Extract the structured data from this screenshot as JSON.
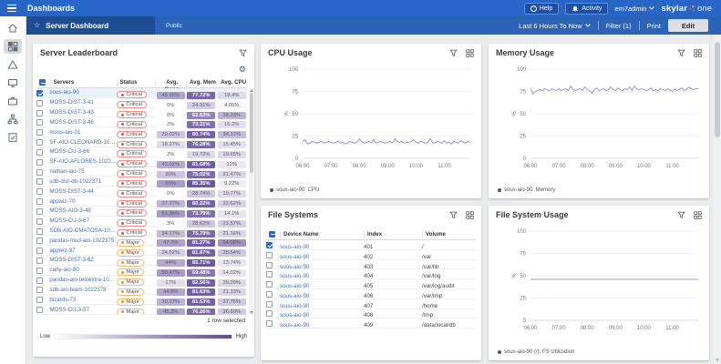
{
  "colors": {
    "topbar": "#2765c6",
    "subbar": "#2b63b7",
    "subbar_dark": "#1f4d94",
    "heat_purple": "#6851a3",
    "line_purple": "#9a85c9",
    "legend_purple": "#5b4791",
    "critical": "#d9534f",
    "major": "#f0940a",
    "link": "#3f6fc4",
    "checkbox_blue": "#2d6bc4"
  },
  "topbar": {
    "title": "Dashboards",
    "help_label": "Help",
    "activity_label": "Activity",
    "user": "em7admin",
    "brand_left": "skylar",
    "brand_right": "one"
  },
  "subheader": {
    "title": "Server Dashboard",
    "visibility": "Public",
    "time_range": "Last 6 Hours To Now",
    "filter_label": "Filter (1)",
    "print_label": "Print",
    "edit_label": "Edit"
  },
  "sidebar": {
    "items": [
      "home",
      "dashboards",
      "events",
      "devices",
      "business-services",
      "maps",
      "tickets"
    ],
    "active": "dashboards"
  },
  "leaderboard": {
    "title": "Server Leaderboard",
    "columns": [
      "Servers",
      "Status",
      "Avg. Swap",
      "Avg. Mem",
      "Avg. CPU"
    ],
    "selected_note": "1 row selected",
    "legend_low": "Low",
    "legend_high": "High",
    "rows": [
      {
        "name": "sous-aio-90",
        "status": "Critical",
        "swap": 45.95,
        "mem": 77.72,
        "cpu": 18.4,
        "selected": true
      },
      {
        "name": "MOSS-DIST-3-41",
        "status": "Critical",
        "swap": 0,
        "mem": 24.91,
        "cpu": 4.05
      },
      {
        "name": "MOSS-DIST-3-43",
        "status": "Critical",
        "swap": 0,
        "mem": 62.63,
        "cpu": 38.33
      },
      {
        "name": "MOSS-DIST-3-46",
        "status": "Critical",
        "swap": 2,
        "mem": 73.21,
        "cpu": 16.2
      },
      {
        "name": "moss-aio-01",
        "status": "Critical",
        "swap": 29.02,
        "mem": 80.74,
        "cpu": 34.12
      },
      {
        "name": "SF-AIO-CLEONARD-1022321",
        "status": "Critical",
        "swap": 18.27,
        "mem": 76.28,
        "cpu": 15.45
      },
      {
        "name": "MOSS-CU-3-66",
        "status": "Critical",
        "swap": 2,
        "mem": 19.72,
        "cpu": 19.65
      },
      {
        "name": "SF-AIO-AFLORES-1022328",
        "status": "Critical",
        "swap": 43.02,
        "mem": 81.68,
        "cpu": 12
      },
      {
        "name": "nathan-aio-75",
        "status": "Critical",
        "swap": 30,
        "mem": 75.02,
        "cpu": 21.47
      },
      {
        "name": "sdb-dist-db-1022371",
        "status": "Critical",
        "swap": 50,
        "mem": 85.35,
        "cpu": 9.22
      },
      {
        "name": "MOSS-DIST-3-44",
        "status": "Critical",
        "swap": 0,
        "mem": 28.74,
        "cpu": 19.77
      },
      {
        "name": "appwiz-70",
        "status": "Critical",
        "swap": 37.27,
        "mem": 80.22,
        "cpu": 22.62
      },
      {
        "name": "MOSS-AIO-3-48",
        "status": "Critical",
        "swap": 51.35,
        "mem": 73.79,
        "cpu": 14.1
      },
      {
        "name": "MOSS-CU-3-67",
        "status": "Critical",
        "swap": 3,
        "mem": 28.62,
        "cpu": 23.57
      },
      {
        "name": "SDB-AIO-CMATOSA-1022327",
        "status": "Critical",
        "swap": 34.17,
        "mem": 75.79,
        "cpu": 21.16
      },
      {
        "name": "pandas-mud-aio-1022375",
        "status": "Major",
        "swap": 47.7,
        "mem": 81.27,
        "cpu": 54.98
      },
      {
        "name": "appwiz-37",
        "status": "Major",
        "swap": 24.02,
        "mem": 81.87,
        "cpu": 28.54
      },
      {
        "name": "MOSS-DIST-3-62",
        "status": "Major",
        "swap": 44,
        "mem": 85.71,
        "cpu": 13.74
      },
      {
        "name": "carly-aio-80",
        "status": "Major",
        "swap": 50.47,
        "mem": 69.48,
        "cpu": 14.02
      },
      {
        "name": "pandas-aio-testextra-1022377",
        "status": "Major",
        "swap": 17,
        "mem": 82.56,
        "cpu": 20.29
      },
      {
        "name": "sdb-aio-team-1022378",
        "status": "Major",
        "swap": 44.8,
        "mem": 81.63,
        "cpu": 21.23
      },
      {
        "name": "bizards-73",
        "status": "Major",
        "swap": 39.27,
        "mem": 81.53,
        "cpu": 27.76
      },
      {
        "name": "MOSS-CU-3-57",
        "status": "Major",
        "swap": 45.3,
        "mem": 76.26,
        "cpu": 26.69
      }
    ]
  },
  "filesystems": {
    "title": "File Systems",
    "columns": [
      "Device Name",
      "Index",
      "Volume"
    ],
    "rows": [
      {
        "device": "sous-aio-90",
        "index": "401",
        "volume": "/",
        "checked": true
      },
      {
        "device": "sous-aio-90",
        "index": "402",
        "volume": "/var"
      },
      {
        "device": "sous-aio-90",
        "index": "403",
        "volume": "/var/lib"
      },
      {
        "device": "sous-aio-90",
        "index": "404",
        "volume": "/var/log"
      },
      {
        "device": "sous-aio-90",
        "index": "405",
        "volume": "/var/log/audit"
      },
      {
        "device": "sous-aio-90",
        "index": "406",
        "volume": "/var/tmp"
      },
      {
        "device": "sous-aio-90",
        "index": "407",
        "volume": "/home"
      },
      {
        "device": "sous-aio-90",
        "index": "408",
        "volume": "/tmp"
      },
      {
        "device": "sous-aio-90",
        "index": "409",
        "volume": "/data/local/db"
      }
    ]
  },
  "chart_data": [
    {
      "type": "line",
      "title": "CPU Usage",
      "ylabel": "%",
      "ylim": [
        0,
        100
      ],
      "yticks": [
        0,
        25,
        50,
        75,
        100
      ],
      "grid": true,
      "legend_position": "bottom-left",
      "x_ticks": [
        "06:00",
        "07:00",
        "08:00",
        "09:00",
        "10:00",
        "11:00"
      ],
      "x_range": [
        "06:00",
        "11:55"
      ],
      "series": [
        {
          "name": "sous-aio-90: CPU",
          "values": [
            19,
            21,
            16,
            17,
            19,
            18,
            17,
            18,
            19,
            17,
            18,
            19,
            18,
            17,
            18,
            19,
            17,
            18,
            16,
            17,
            19,
            18,
            17,
            18,
            22,
            19,
            17,
            18,
            19,
            17,
            21,
            17,
            18,
            19,
            18,
            17,
            18,
            19,
            17,
            22,
            19,
            18,
            19,
            17,
            18,
            18,
            19,
            21,
            18,
            17,
            19,
            18,
            17,
            18,
            22,
            18,
            17,
            19,
            18,
            17,
            20,
            17,
            18,
            16,
            19,
            18,
            17,
            20,
            18,
            17,
            19,
            18
          ]
        }
      ]
    },
    {
      "type": "line",
      "title": "Memory Usage",
      "ylabel": "%",
      "ylim": [
        0,
        100
      ],
      "yticks": [
        0,
        25,
        50,
        75,
        100
      ],
      "grid": true,
      "legend_position": "bottom-left",
      "x_ticks": [
        "06:00",
        "07:00",
        "08:00",
        "09:00",
        "10:00",
        "11:00"
      ],
      "x_range": [
        "06:00",
        "11:55"
      ],
      "series": [
        {
          "name": "sous-aio-90: Memory",
          "values": [
            79,
            72,
            75,
            76,
            77,
            76,
            78,
            77,
            76,
            78,
            77,
            76,
            78,
            76,
            77,
            78,
            76,
            81,
            77,
            76,
            77,
            78,
            76,
            80,
            77,
            76,
            73,
            77,
            79,
            76,
            77,
            78,
            76,
            77,
            80,
            77,
            76,
            79,
            77,
            76,
            78,
            77,
            80,
            76,
            81,
            78,
            77,
            78,
            77,
            76,
            77,
            79,
            76,
            77,
            76,
            78,
            77,
            76,
            78,
            77,
            75,
            78,
            76,
            77,
            79,
            76,
            77,
            80,
            78,
            77,
            78,
            78
          ]
        }
      ]
    },
    {
      "type": "line",
      "title": "File System Usage",
      "ylabel": "%",
      "ylim": [
        0,
        100
      ],
      "yticks": [
        0,
        25,
        50,
        75,
        100
      ],
      "grid": true,
      "legend_position": "bottom-left",
      "x_ticks": [
        "06:00",
        "07:00",
        "08:00",
        "09:00",
        "10:00",
        "11:00"
      ],
      "x_range": [
        "06:00",
        "11:55"
      ],
      "series": [
        {
          "name": "sous-aio-90 (/): FS Utilization",
          "values": [
            46,
            46
          ]
        }
      ]
    }
  ]
}
